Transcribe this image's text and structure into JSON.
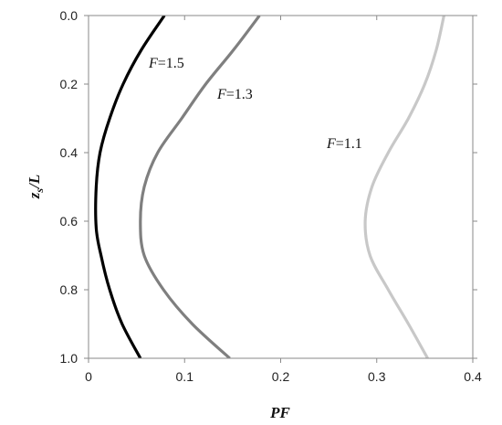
{
  "chart_data": {
    "type": "line",
    "xlabel": "PF",
    "ylabel_main": "z",
    "ylabel_sub": "s",
    "ylabel_tail": "/L",
    "xlim": [
      0,
      0.4
    ],
    "ylim": [
      0,
      1.0
    ],
    "y_inverted": true,
    "x_ticks": [
      "0",
      "0.1",
      "0.2",
      "0.3",
      "0.4"
    ],
    "y_ticks": [
      "0.0",
      "0.2",
      "0.4",
      "0.6",
      "0.8",
      "1.0"
    ],
    "grid": false,
    "series": [
      {
        "name": "F=1.5",
        "color": "#000000",
        "points": [
          [
            0.079,
            0.0
          ],
          [
            0.055,
            0.1
          ],
          [
            0.036,
            0.2
          ],
          [
            0.022,
            0.3
          ],
          [
            0.012,
            0.4
          ],
          [
            0.008,
            0.5
          ],
          [
            0.008,
            0.62
          ],
          [
            0.013,
            0.7
          ],
          [
            0.022,
            0.8
          ],
          [
            0.035,
            0.9
          ],
          [
            0.054,
            1.0
          ]
        ]
      },
      {
        "name": "F=1.3",
        "color": "#7f7f7f",
        "points": [
          [
            0.178,
            0.0
          ],
          [
            0.151,
            0.1
          ],
          [
            0.122,
            0.2
          ],
          [
            0.097,
            0.3
          ],
          [
            0.072,
            0.4
          ],
          [
            0.058,
            0.5
          ],
          [
            0.054,
            0.6
          ],
          [
            0.058,
            0.7
          ],
          [
            0.078,
            0.8
          ],
          [
            0.108,
            0.9
          ],
          [
            0.147,
            1.0
          ]
        ]
      },
      {
        "name": "F=1.1",
        "color": "#c8c8c8",
        "points": [
          [
            0.37,
            0.0
          ],
          [
            0.362,
            0.1
          ],
          [
            0.35,
            0.2
          ],
          [
            0.333,
            0.3
          ],
          [
            0.312,
            0.4
          ],
          [
            0.295,
            0.5
          ],
          [
            0.288,
            0.6
          ],
          [
            0.293,
            0.7
          ],
          [
            0.312,
            0.8
          ],
          [
            0.333,
            0.9
          ],
          [
            0.353,
            1.0
          ]
        ]
      }
    ],
    "annotations": [
      {
        "italic": "F",
        "rest": "=1.5",
        "series": 0
      },
      {
        "italic": "F",
        "rest": "=1.3",
        "series": 1
      },
      {
        "italic": "F",
        "rest": "=1.1",
        "series": 2
      }
    ]
  }
}
